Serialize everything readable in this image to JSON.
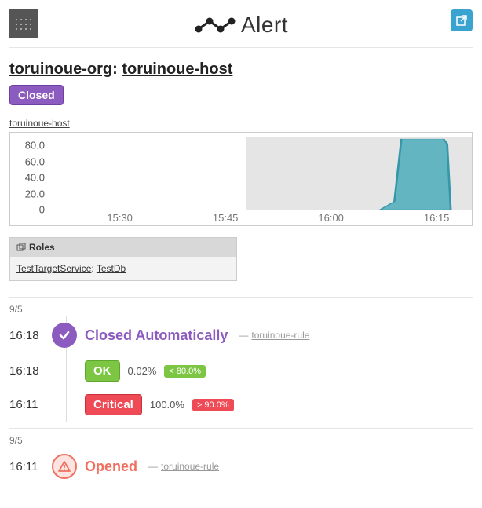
{
  "brand": {
    "name": "Alert"
  },
  "breadcrumb": {
    "org": "toruinoue-org",
    "host": "toruinoue-host",
    "sep": ": "
  },
  "status": {
    "label": "Closed",
    "bg": "#8b5bbf"
  },
  "host_link": "toruinoue-host",
  "chart": {
    "type": "area",
    "ylim": [
      0,
      90
    ],
    "yticks": [
      0,
      20.0,
      40.0,
      60.0,
      80.0
    ],
    "ytick_labels": [
      "0",
      "20.0",
      "40.0",
      "60.0",
      "80.0"
    ],
    "xlim": [
      0,
      60
    ],
    "xticks": [
      10,
      25,
      40,
      55
    ],
    "xtick_labels": [
      "15:30",
      "15:45",
      "16:00",
      "16:15"
    ],
    "shade_start": 28,
    "shade_end": 60,
    "series": {
      "color": "#6fcad9",
      "stroke": "#3da9bb",
      "points": [
        [
          47,
          0
        ],
        [
          49,
          10
        ],
        [
          50,
          88
        ],
        [
          56,
          88
        ],
        [
          56.5,
          82
        ],
        [
          57,
          0
        ]
      ]
    },
    "background_color": "#ffffff",
    "label_fontsize": 13
  },
  "roles": {
    "header": "Roles",
    "service": "TestTargetService",
    "role": "TestDb"
  },
  "timeline": [
    {
      "section_date": "9/5",
      "rows": [
        {
          "type": "event",
          "time": "16:18",
          "icon": "check",
          "circle": "purple",
          "title": "Closed Automatically",
          "title_color": "purple",
          "rule": "toruinoue-rule"
        },
        {
          "type": "status",
          "time": "16:18",
          "badge": "OK",
          "badge_class": "sev-ok",
          "value": "0.02%",
          "threshold": "< 80.0%",
          "threshold_class": "thresh-ok"
        },
        {
          "type": "status",
          "time": "16:11",
          "badge": "Critical",
          "badge_class": "sev-crit",
          "value": "100.0%",
          "threshold": "> 90.0%",
          "threshold_class": "thresh-crit"
        }
      ]
    },
    {
      "section_date": "9/5",
      "rows": [
        {
          "type": "event",
          "time": "16:11",
          "icon": "warn",
          "circle": "red-outline",
          "title": "Opened",
          "title_color": "red",
          "rule": "toruinoue-rule"
        }
      ]
    }
  ]
}
